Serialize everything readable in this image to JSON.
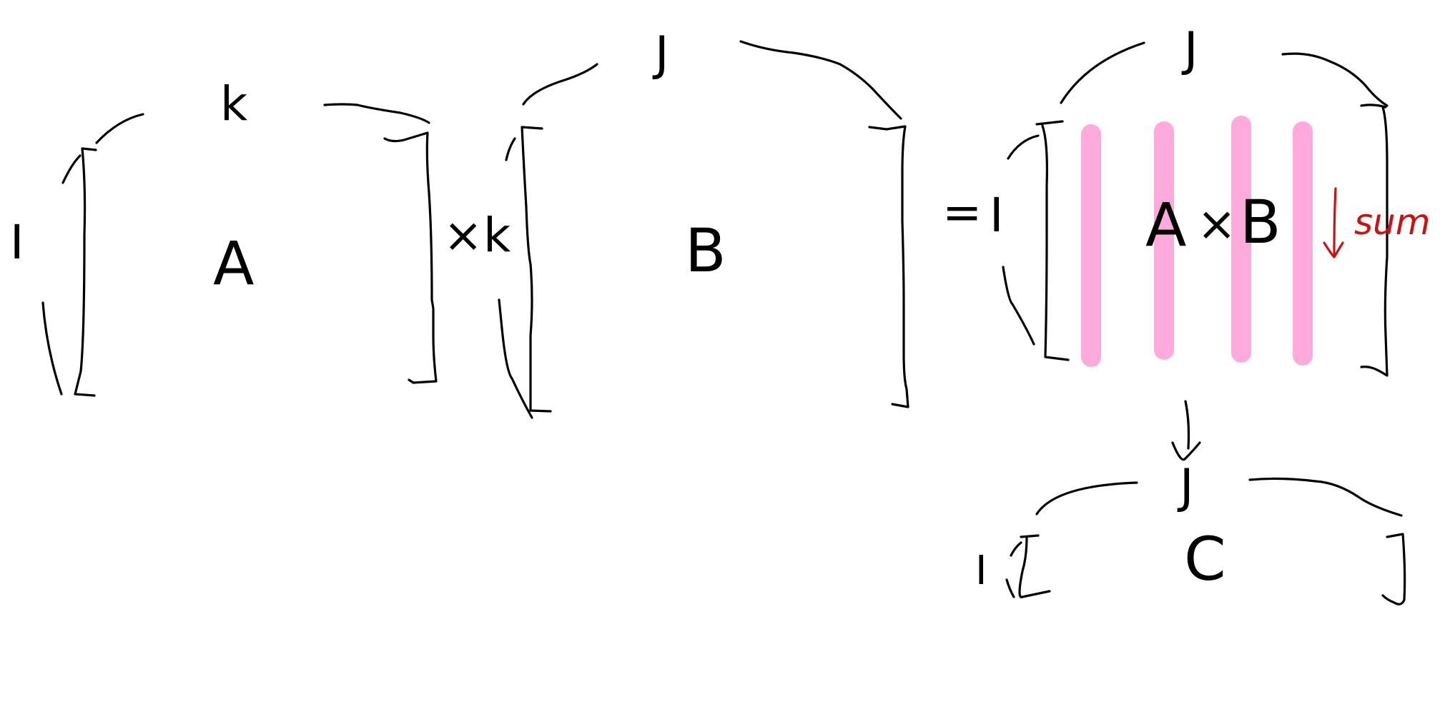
{
  "diagram": {
    "matrix_a": {
      "name": "A",
      "rows_label": "I",
      "cols_label": "k"
    },
    "times_1": "×",
    "matrix_b": {
      "name": "B",
      "rows_label": "k",
      "cols_label": "J"
    },
    "equals": "=",
    "product": {
      "rows_label": "I",
      "cols_label": "J",
      "name_left": "A",
      "times": "×",
      "name_right": "B",
      "stripe_count": 4,
      "stripe_color": "#ffaadd",
      "sum_label": "sum",
      "sum_color": "#cc1111"
    },
    "result": {
      "name": "C",
      "rows_label": "I",
      "cols_label": "J"
    }
  }
}
